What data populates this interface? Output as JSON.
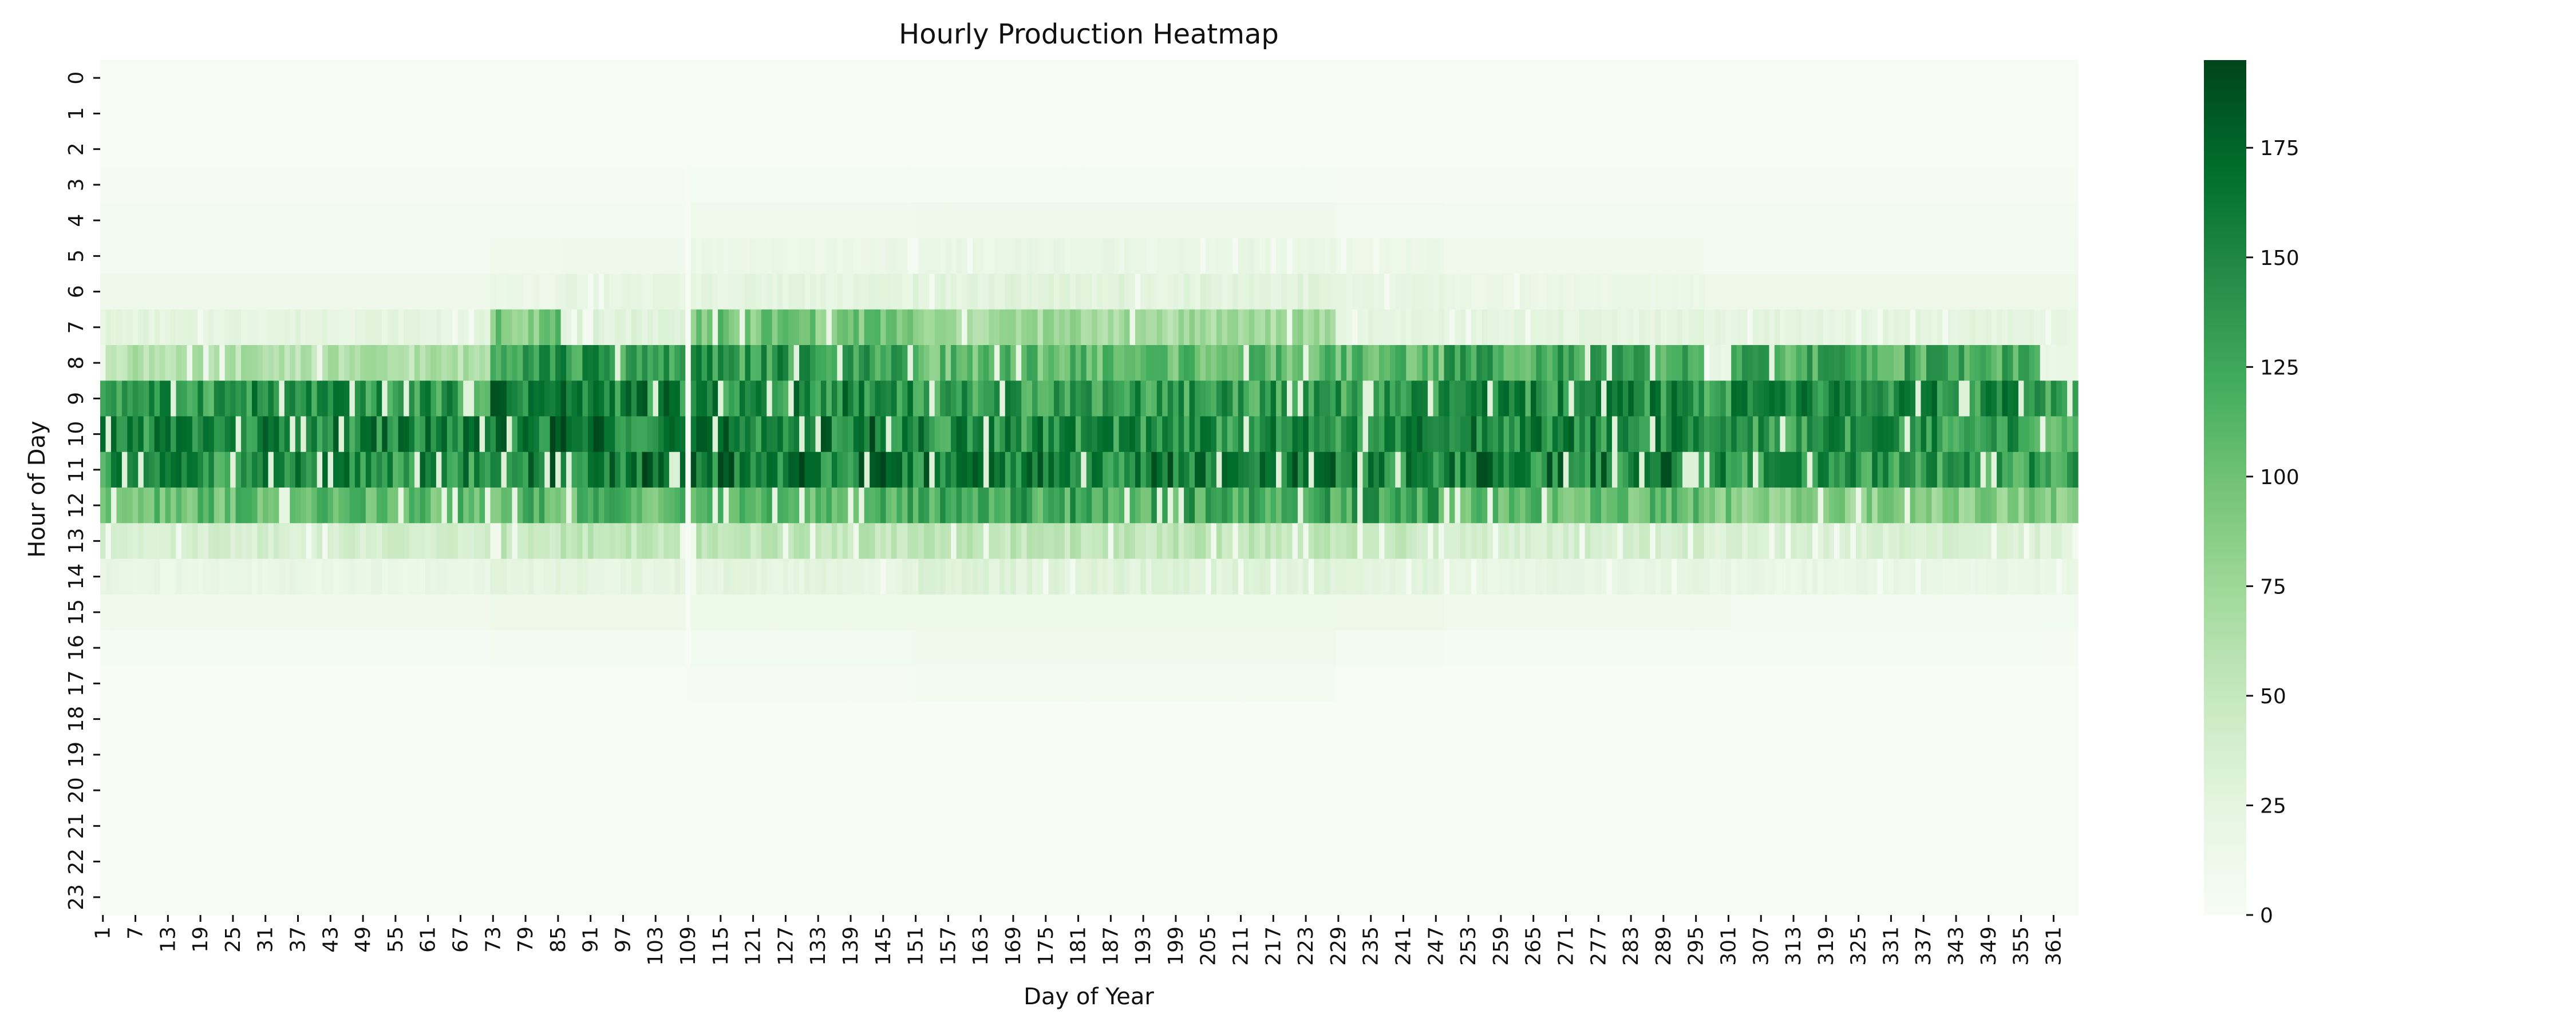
{
  "chart_data": {
    "type": "heatmap",
    "title": "Hourly Production Heatmap",
    "xlabel": "Day of Year",
    "ylabel": "Hour of Day",
    "x_range": [
      1,
      365
    ],
    "x_tick_labels": [
      1,
      7,
      13,
      19,
      25,
      31,
      37,
      43,
      49,
      55,
      61,
      67,
      73,
      79,
      85,
      91,
      97,
      103,
      109,
      115,
      121,
      127,
      133,
      139,
      145,
      151,
      157,
      163,
      169,
      175,
      181,
      187,
      193,
      199,
      205,
      211,
      217,
      223,
      229,
      235,
      241,
      247,
      253,
      259,
      265,
      271,
      277,
      283,
      289,
      295,
      301,
      307,
      313,
      319,
      325,
      331,
      337,
      343,
      349,
      355,
      361
    ],
    "y_tick_labels": [
      0,
      1,
      2,
      3,
      4,
      5,
      6,
      7,
      8,
      9,
      10,
      11,
      12,
      13,
      14,
      15,
      16,
      17,
      18,
      19,
      20,
      21,
      22,
      23
    ],
    "colorscale": "Greens",
    "color_low": "#f7fcf5",
    "color_high": "#00441b",
    "value_range": [
      0,
      195
    ],
    "colorbar_ticks": [
      0,
      25,
      50,
      75,
      100,
      125,
      150,
      175
    ],
    "segments": [
      {
        "days": [
          1,
          72
        ],
        "hourly": [
          2,
          2,
          2,
          3,
          5,
          8,
          12,
          25,
          65,
          145,
          155,
          150,
          110,
          40,
          20,
          10,
          4,
          2,
          2,
          2,
          2,
          2,
          2,
          2
        ]
      },
      {
        "days": [
          73,
          85
        ],
        "hourly": [
          2,
          2,
          2,
          3,
          6,
          10,
          18,
          100,
          150,
          165,
          170,
          160,
          115,
          55,
          25,
          14,
          6,
          2,
          2,
          2,
          2,
          2,
          2,
          2
        ]
      },
      {
        "days": [
          86,
          108
        ],
        "hourly": [
          2,
          2,
          2,
          3,
          6,
          12,
          22,
          30,
          140,
          160,
          170,
          165,
          115,
          55,
          25,
          14,
          6,
          2,
          2,
          2,
          2,
          2,
          2,
          2
        ]
      },
      {
        "days": [
          109,
          109
        ],
        "hourly": [
          2,
          2,
          2,
          2,
          2,
          2,
          2,
          2,
          2,
          2,
          2,
          2,
          2,
          2,
          2,
          2,
          2,
          2,
          2,
          2,
          2,
          2,
          2,
          2
        ]
      },
      {
        "days": [
          110,
          150
        ],
        "hourly": [
          2,
          2,
          2,
          4,
          10,
          18,
          25,
          100,
          140,
          155,
          165,
          165,
          120,
          55,
          25,
          15,
          8,
          3,
          2,
          2,
          2,
          2,
          2,
          2
        ]
      },
      {
        "days": [
          151,
          228
        ],
        "hourly": [
          2,
          2,
          2,
          4,
          12,
          20,
          28,
          75,
          110,
          140,
          150,
          160,
          130,
          55,
          30,
          15,
          10,
          5,
          2,
          2,
          2,
          2,
          2,
          2
        ]
      },
      {
        "days": [
          229,
          248
        ],
        "hourly": [
          2,
          2,
          2,
          3,
          8,
          16,
          22,
          25,
          110,
          140,
          150,
          160,
          130,
          50,
          28,
          14,
          6,
          2,
          2,
          2,
          2,
          2,
          2,
          2
        ]
      },
      {
        "days": [
          249,
          296
        ],
        "hourly": [
          2,
          2,
          2,
          3,
          6,
          10,
          18,
          25,
          130,
          150,
          155,
          160,
          110,
          40,
          22,
          10,
          4,
          2,
          2,
          2,
          2,
          2,
          2,
          2
        ]
      },
      {
        "days": [
          297,
          301
        ],
        "hourly": [
          2,
          2,
          2,
          3,
          5,
          8,
          14,
          25,
          20,
          140,
          150,
          150,
          100,
          35,
          20,
          10,
          4,
          2,
          2,
          2,
          2,
          2,
          2,
          2
        ]
      },
      {
        "days": [
          302,
          358
        ],
        "hourly": [
          2,
          2,
          2,
          3,
          5,
          8,
          14,
          25,
          125,
          150,
          145,
          140,
          90,
          35,
          20,
          8,
          4,
          2,
          2,
          2,
          2,
          2,
          2,
          2
        ]
      },
      {
        "days": [
          359,
          365
        ],
        "hourly": [
          2,
          2,
          2,
          3,
          5,
          8,
          14,
          25,
          18,
          130,
          120,
          130,
          90,
          30,
          18,
          8,
          3,
          2,
          2,
          2,
          2,
          2,
          2,
          2
        ]
      }
    ]
  }
}
